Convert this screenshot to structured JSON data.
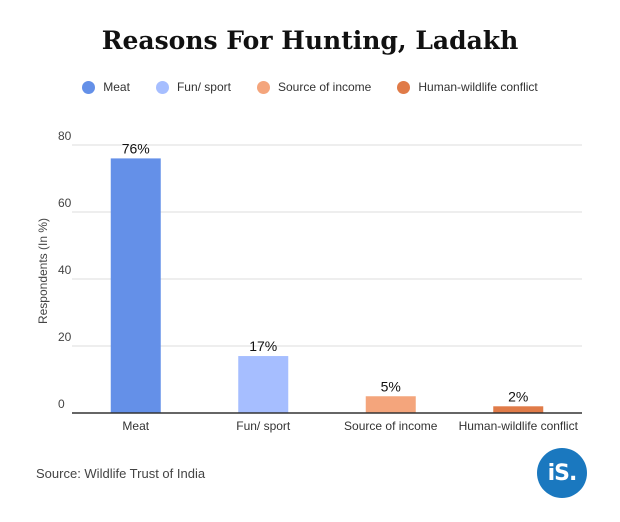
{
  "title": "Reasons For Hunting, Ladakh",
  "source": "Source: Wildlife Trust of India",
  "logo_text": "iS.",
  "chart_data": {
    "type": "bar",
    "title": "Reasons For Hunting, Ladakh",
    "xlabel": "",
    "ylabel": "Respondents (In %)",
    "ylim": [
      0,
      80
    ],
    "yticks": [
      0,
      20,
      40,
      60,
      80
    ],
    "grid": true,
    "legend_position": "top",
    "categories": [
      "Meat",
      "Fun/ sport",
      "Source of income",
      "Human-wildlife conflict"
    ],
    "values": [
      76,
      17,
      5,
      2
    ],
    "data_labels": [
      "76%",
      "17%",
      "5%",
      "2%"
    ],
    "colors": [
      "#6490e8",
      "#a6beff",
      "#f4a57c",
      "#e07b48"
    ],
    "legend": [
      "Meat",
      "Fun/ sport",
      "Source of income",
      "Human-wildlife conflict"
    ]
  }
}
